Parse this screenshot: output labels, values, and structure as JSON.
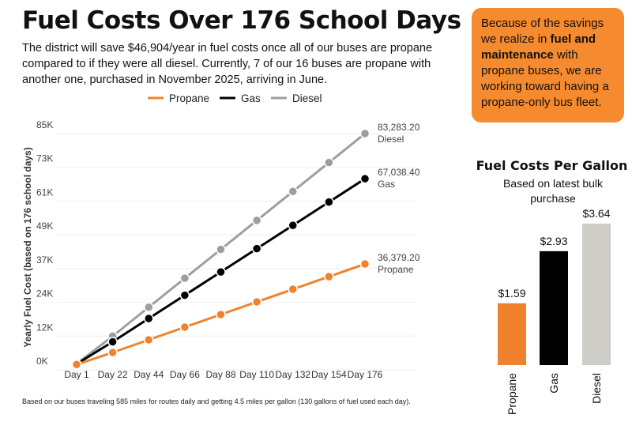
{
  "header": {
    "title": "Fuel Costs Over 176 School Days",
    "subtitle": "The district will save $46,904/year in fuel costs once all of our buses are propane compared to if they were all diesel. Currently, 7 of our 16 buses are propane with another one, purchased in November 2025, arriving in June."
  },
  "callout": {
    "pre": "Because of the savings we realize in ",
    "bold": "fuel and maintenance",
    "post": " with propane buses, we are working toward having a propane-only bus fleet.",
    "color": "#f58a2e"
  },
  "footnote": "Based on our buses traveling 585 miles for routes daily and getting 4.5 miles per gallon (130 gallons of fuel used each day).",
  "chart_data": [
    {
      "type": "line",
      "title": "",
      "ylabel": "Yearly Fuel Cost (based on 176 school days)",
      "xlabel": "",
      "ylim": [
        0,
        85000
      ],
      "yticks": [
        "0K",
        "12K",
        "24K",
        "37K",
        "49K",
        "61K",
        "73K",
        "85K"
      ],
      "categories": [
        "Day 1",
        "Day 22",
        "Day 44",
        "Day 66",
        "Day 88",
        "Day 110",
        "Day 132",
        "Day 154",
        "Day 176"
      ],
      "legend": "top",
      "grid": true,
      "series": [
        {
          "name": "Propane",
          "color": "#f0822d",
          "values": [
            206.7,
            4547.4,
            9094.8,
            13642.2,
            18189.6,
            22737,
            27284.4,
            31831.8,
            36379.2
          ],
          "end_label": "36,379.20"
        },
        {
          "name": "Gas",
          "color": "#000000",
          "values": [
            380.9,
            8379.8,
            16759.6,
            25139.4,
            33519.2,
            41899,
            50278.8,
            58658.6,
            67038.4
          ],
          "end_label": "67,038.40"
        },
        {
          "name": "Diesel",
          "color": "#9e9e9e",
          "values": [
            473.2,
            10410.4,
            20820.8,
            31231.2,
            41641.6,
            52052,
            62462.4,
            72872.8,
            83283.2
          ],
          "end_label": "83,283.20"
        }
      ]
    },
    {
      "type": "bar",
      "title": "Fuel Costs Per Gallon",
      "subtitle": "Based on latest bulk purchase",
      "categories": [
        "Propane",
        "Gas",
        "Diesel"
      ],
      "values": [
        1.59,
        2.93,
        3.64
      ],
      "labels": [
        "$1.59",
        "$2.93",
        "$3.64"
      ],
      "colors": [
        "#f0822d",
        "#000000",
        "#cfcdc8"
      ]
    }
  ]
}
